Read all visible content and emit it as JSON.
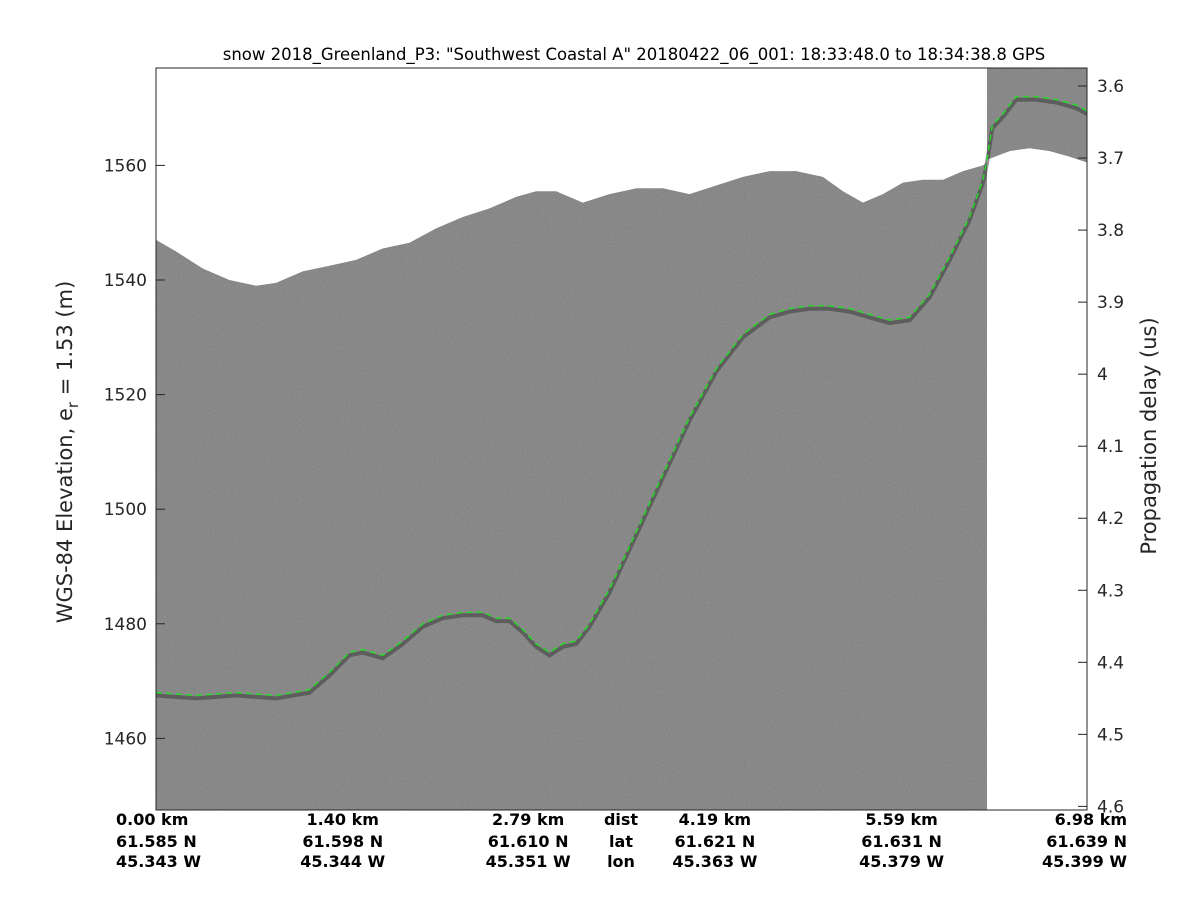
{
  "colors": {
    "radargram_gray": "#7a7a7a",
    "surface_white": "#ffffff",
    "layer_dashed": "#22dd22",
    "axis": "#262626"
  },
  "chart_data": {
    "type": "radargram",
    "title": "snow 2018_Greenland_P3: \"Southwest Coastal A\"  20180422_06_001: 18:33:48.0 to 18:34:38.8 GPS",
    "ylabel_left_prefix": "WGS-84 Elevation, e",
    "ylabel_left_sub": "r",
    "ylabel_left_suffix": " = 1.53 (m)",
    "ylabel_right": "Propagation delay (us)",
    "xlim_km": [
      0,
      6.98
    ],
    "ylim_left": [
      1447.5,
      1577
    ],
    "ylim_right": [
      4.605,
      3.575
    ],
    "yticks_left": [
      1460,
      1480,
      1500,
      1520,
      1540,
      1560
    ],
    "yticks_right": [
      3.6,
      3.7,
      3.8,
      3.9,
      4,
      4.1,
      4.2,
      4.3,
      4.4,
      4.5,
      4.6
    ],
    "yticks_right_labels": [
      "3.6",
      "3.7",
      "3.8",
      "3.9",
      "4",
      "4.1",
      "4.2",
      "4.3",
      "4.4",
      "4.5",
      "4.6"
    ],
    "x_annotation_rows": [
      "dist",
      "lat",
      "lon"
    ],
    "x_annotations": [
      {
        "dist": "0.00 km",
        "lat": "61.585 N",
        "lon": "45.343 W",
        "km": 0.0
      },
      {
        "dist": "1.40 km",
        "lat": "61.598 N",
        "lon": "45.344 W",
        "km": 1.4
      },
      {
        "dist": "2.79 km",
        "lat": "61.610 N",
        "lon": "45.351 W",
        "km": 2.79
      },
      {
        "dist": "4.19 km",
        "lat": "61.621 N",
        "lon": "45.363 W",
        "km": 4.19
      },
      {
        "dist": "5.59 km",
        "lat": "61.631 N",
        "lon": "45.379 W",
        "km": 5.59
      },
      {
        "dist": "6.98 km",
        "lat": "61.639 N",
        "lon": "45.399 W",
        "km": 6.98
      }
    ],
    "data_end_km": 6.23,
    "top_of_data": {
      "km": [
        0.0,
        0.15,
        0.35,
        0.55,
        0.75,
        0.9,
        1.1,
        1.3,
        1.5,
        1.7,
        1.9,
        2.1,
        2.3,
        2.5,
        2.7,
        2.85,
        3.0,
        3.2,
        3.4,
        3.6,
        3.8,
        4.0,
        4.2,
        4.4,
        4.6,
        4.8,
        5.0,
        5.15,
        5.3,
        5.45,
        5.6,
        5.75,
        5.9,
        6.05,
        6.2,
        6.23
      ],
      "elevation": [
        1547,
        1545,
        1542,
        1540,
        1539,
        1539.5,
        1541.5,
        1542.5,
        1543.5,
        1545.5,
        1546.5,
        1549,
        1551,
        1552.5,
        1554.5,
        1555.5,
        1555.5,
        1553.5,
        1555,
        1556,
        1556,
        1555,
        1556.5,
        1558,
        1559,
        1559,
        1558,
        1555.5,
        1553.5,
        1555,
        1557,
        1557.5,
        1557.5,
        1559,
        1560,
        1560.5
      ]
    },
    "top_of_data_right": {
      "km": [
        6.23,
        6.4,
        6.55,
        6.7,
        6.85,
        6.98
      ],
      "elevation": [
        1561,
        1562.5,
        1563,
        1562.5,
        1561.5,
        1560.5
      ]
    },
    "tracked_layer": {
      "name": "",
      "km": [
        0.0,
        0.3,
        0.6,
        0.9,
        1.15,
        1.3,
        1.45,
        1.55,
        1.7,
        1.85,
        2.0,
        2.15,
        2.3,
        2.45,
        2.55,
        2.65,
        2.75,
        2.85,
        2.95,
        3.05,
        3.15,
        3.25,
        3.4,
        3.6,
        3.8,
        4.0,
        4.2,
        4.4,
        4.6,
        4.75,
        4.9,
        5.05,
        5.2,
        5.35,
        5.5,
        5.65,
        5.8,
        5.95,
        6.1,
        6.2,
        6.23,
        6.27,
        6.35,
        6.45,
        6.6,
        6.75,
        6.9,
        6.98
      ],
      "elevation": [
        1468,
        1467.5,
        1468,
        1467.5,
        1468.5,
        1471.5,
        1475,
        1475.5,
        1474.5,
        1477,
        1480,
        1481.5,
        1482,
        1482,
        1481,
        1481,
        1479,
        1476.5,
        1475,
        1476.5,
        1477,
        1480,
        1486,
        1496,
        1506,
        1516,
        1524.5,
        1530.5,
        1534,
        1535,
        1535.5,
        1535.5,
        1535,
        1534,
        1533,
        1533.5,
        1537.5,
        1544,
        1551,
        1557.5,
        1561,
        1567,
        1569,
        1572,
        1572,
        1571.5,
        1570.5,
        1569.5
      ]
    }
  }
}
